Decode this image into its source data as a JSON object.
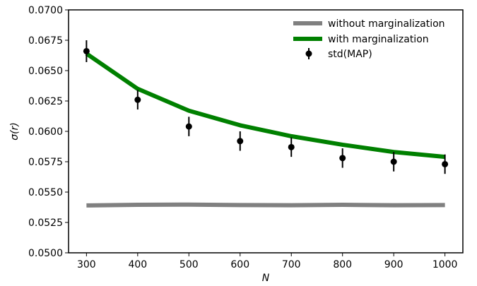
{
  "chart_data": {
    "type": "line",
    "xlabel": "N",
    "ylabel": "σ(r)",
    "xlim": [
      265,
      1035
    ],
    "ylim": [
      0.05,
      0.07
    ],
    "x": [
      300,
      400,
      500,
      600,
      700,
      800,
      900,
      1000
    ],
    "x_tick_values": [
      300,
      400,
      500,
      600,
      700,
      800,
      900,
      1000
    ],
    "x_tick_labels": [
      "300",
      "400",
      "500",
      "600",
      "700",
      "800",
      "900",
      "1000"
    ],
    "y_tick_values": [
      0.05,
      0.0525,
      0.055,
      0.0575,
      0.06,
      0.0625,
      0.065,
      0.0675,
      0.07
    ],
    "y_tick_labels": [
      "0.0500",
      "0.0525",
      "0.0550",
      "0.0575",
      "0.0600",
      "0.0625",
      "0.0650",
      "0.0675",
      "0.0700"
    ],
    "grid": false,
    "legend_position": "top-right",
    "series": [
      {
        "name": "without marginalization",
        "kind": "line",
        "color": "#808080",
        "values": [
          0.0539,
          0.05395,
          0.05397,
          0.05393,
          0.05392,
          0.05395,
          0.05392,
          0.05393
        ]
      },
      {
        "name": "with marginalization",
        "kind": "line",
        "color": "#008000",
        "values": [
          0.0664,
          0.0635,
          0.0617,
          0.0605,
          0.0596,
          0.0589,
          0.0583,
          0.0579
        ]
      },
      {
        "name": "std(MAP)",
        "kind": "errorbar",
        "color": "#000000",
        "values": [
          0.0666,
          0.0626,
          0.0604,
          0.0592,
          0.0587,
          0.0578,
          0.0575,
          0.0573
        ],
        "errors": [
          0.0009,
          0.0008,
          0.0008,
          0.0008,
          0.0008,
          0.0008,
          0.0008,
          0.0008
        ]
      }
    ]
  }
}
